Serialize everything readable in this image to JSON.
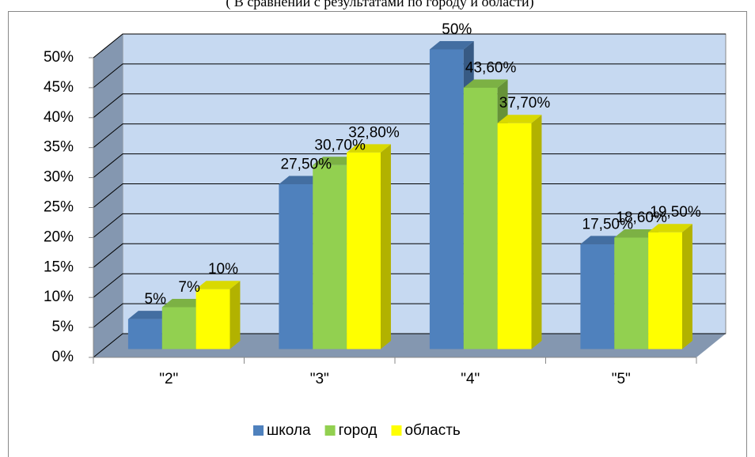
{
  "chart_data": {
    "type": "bar3d",
    "title": "( В сравнении с  результатами по городу и области)",
    "categories": [
      "\"2\"",
      "\"3\"",
      "\"4\"",
      "\"5\""
    ],
    "series": [
      {
        "name": "школа",
        "color": "#4f81bd",
        "values": [
          5,
          27.5,
          50,
          17.5
        ],
        "value_labels": [
          "5%",
          "27,50%",
          "50%",
          "17,50%"
        ]
      },
      {
        "name": "город",
        "color": "#92d050",
        "values": [
          7,
          30.7,
          43.6,
          18.6
        ],
        "value_labels": [
          "7%",
          "30,70%",
          "43,60%",
          "18,60%"
        ]
      },
      {
        "name": "область",
        "color": "#ffff00",
        "values": [
          10,
          32.8,
          37.7,
          19.5
        ],
        "value_labels": [
          "10%",
          "32,80%",
          "37,70%",
          "19,50%"
        ]
      }
    ],
    "ylim": [
      0,
      50
    ],
    "yticks": [
      {
        "value": 0,
        "label": "0%"
      },
      {
        "value": 5,
        "label": "5%"
      },
      {
        "value": 10,
        "label": "10%"
      },
      {
        "value": 15,
        "label": "15%"
      },
      {
        "value": 20,
        "label": "20%"
      },
      {
        "value": 25,
        "label": "25%"
      },
      {
        "value": 30,
        "label": "30%"
      },
      {
        "value": 35,
        "label": "35%"
      },
      {
        "value": 40,
        "label": "40%"
      },
      {
        "value": 45,
        "label": "45%"
      },
      {
        "value": 50,
        "label": "50%"
      }
    ],
    "grid": true,
    "legend": "bottom"
  }
}
